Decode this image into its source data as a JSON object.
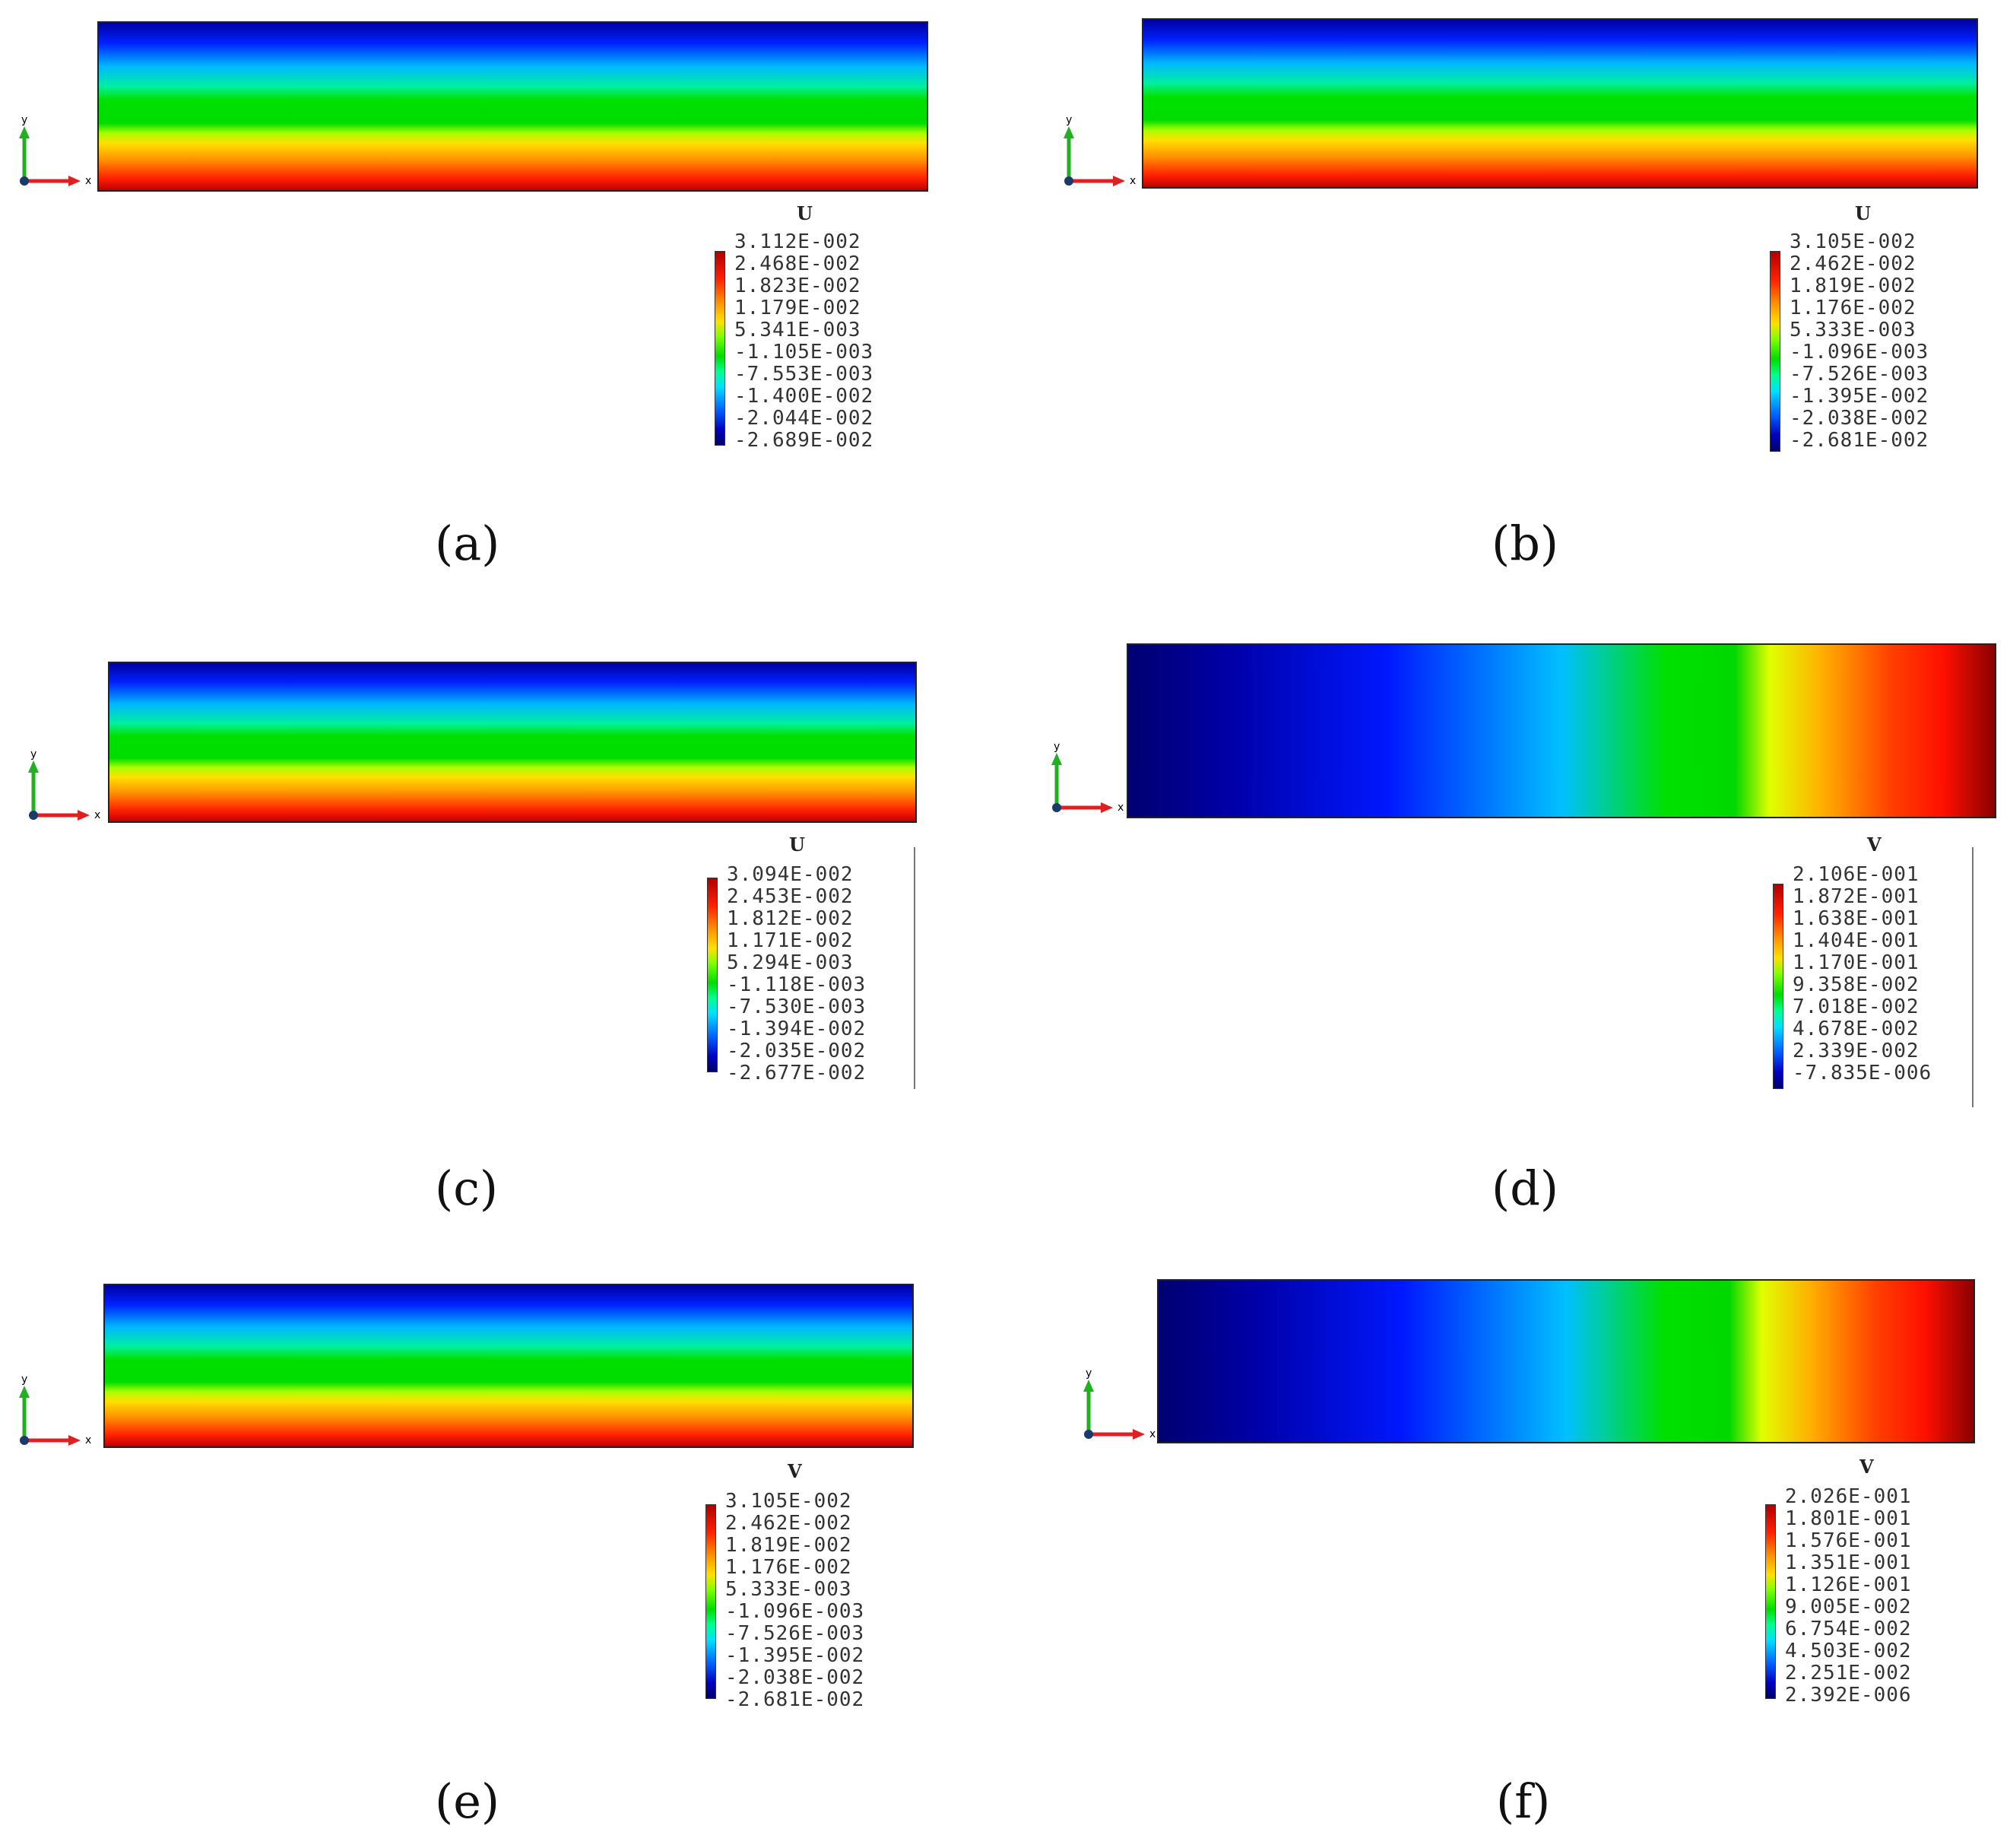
{
  "panels": [
    {
      "caption": "(a)",
      "field_type": "horizontal-layered-u",
      "legend": {
        "title": "U",
        "values": [
          "3.112E-002",
          "2.468E-002",
          "1.823E-002",
          "1.179E-002",
          "5.341E-003",
          "-1.105E-003",
          "-7.553E-003",
          "-1.400E-002",
          "-2.044E-002",
          "-2.689E-002"
        ]
      },
      "axes": {
        "x_label": "x",
        "y_label": "y"
      }
    },
    {
      "caption": "(b)",
      "field_type": "horizontal-layered-u",
      "legend": {
        "title": "U",
        "values": [
          "3.105E-002",
          "2.462E-002",
          "1.819E-002",
          "1.176E-002",
          "5.333E-003",
          "-1.096E-003",
          "-7.526E-003",
          "-1.395E-002",
          "-2.038E-002",
          "-2.681E-002"
        ]
      },
      "axes": {
        "x_label": "x",
        "y_label": "y"
      }
    },
    {
      "caption": "(c)",
      "field_type": "horizontal-layered-u",
      "legend": {
        "title": "U",
        "values": [
          "3.094E-002",
          "2.453E-002",
          "1.812E-002",
          "1.171E-002",
          "5.294E-003",
          "-1.118E-003",
          "-7.530E-003",
          "-1.394E-002",
          "-2.035E-002",
          "-2.677E-002"
        ]
      },
      "axes": {
        "x_label": "x",
        "y_label": "y"
      }
    },
    {
      "caption": "(d)",
      "field_type": "vertical-banded-v",
      "legend": {
        "title": "V",
        "values": [
          "2.106E-001",
          "1.872E-001",
          "1.638E-001",
          "1.404E-001",
          "1.170E-001",
          "9.358E-002",
          "7.018E-002",
          "4.678E-002",
          "2.339E-002",
          "-7.835E-006"
        ]
      },
      "axes": {
        "x_label": "x",
        "y_label": "y"
      }
    },
    {
      "caption": "(e)",
      "field_type": "horizontal-layered-u",
      "legend": {
        "title": "V",
        "values": [
          "3.105E-002",
          "2.462E-002",
          "1.819E-002",
          "1.176E-002",
          "5.333E-003",
          "-1.096E-003",
          "-7.526E-003",
          "-1.395E-002",
          "-2.038E-002",
          "-2.681E-002"
        ]
      },
      "axes": {
        "x_label": "x",
        "y_label": "y"
      }
    },
    {
      "caption": "(f)",
      "field_type": "vertical-banded-v",
      "legend": {
        "title": "V",
        "values": [
          "2.026E-001",
          "1.801E-001",
          "1.576E-001",
          "1.351E-001",
          "1.126E-001",
          "9.005E-002",
          "6.754E-002",
          "4.503E-002",
          "2.251E-002",
          "2.392E-006"
        ]
      },
      "axes": {
        "x_label": "x",
        "y_label": "y"
      }
    }
  ],
  "colors": {
    "contour_high": "#c00000",
    "contour_mid": "#00e000",
    "contour_low": "#0000a0",
    "axis_x": "#e02020",
    "axis_y": "#20b020",
    "axis_origin": "#1a3a6a"
  }
}
